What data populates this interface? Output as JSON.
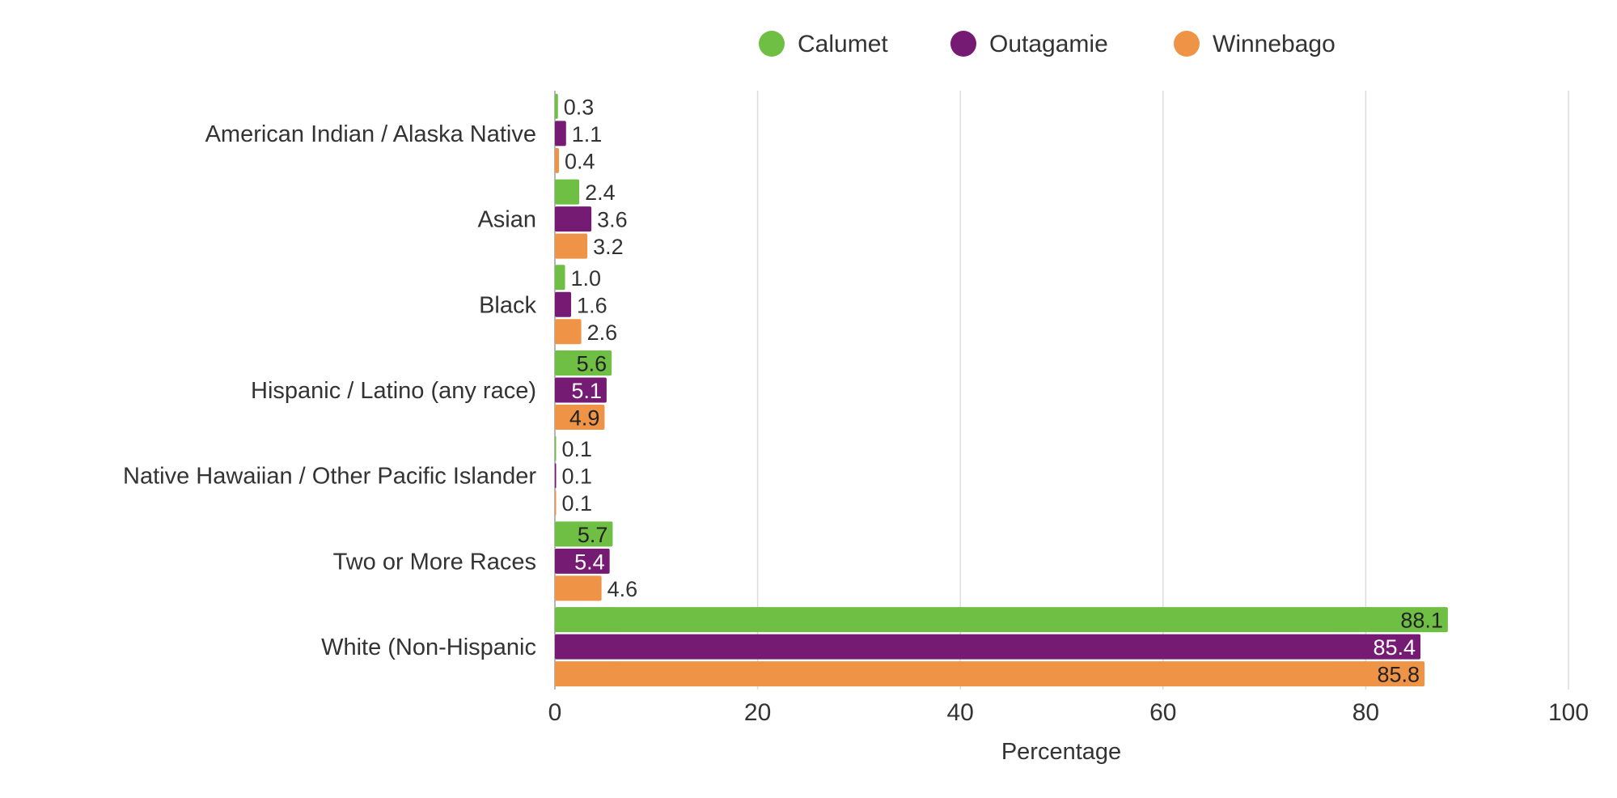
{
  "chart_data": {
    "type": "bar",
    "orientation": "horizontal",
    "title": "",
    "xlabel": "Percentage",
    "ylabel": "",
    "xlim": [
      0,
      100
    ],
    "xticks": [
      0,
      20,
      40,
      60,
      80,
      100
    ],
    "grid": true,
    "legend_position": "top-center",
    "categories": [
      "American Indian / Alaska Native",
      "Asian",
      "Black",
      "Hispanic / Latino (any race)",
      "Native Hawaiian / Other Pacific Islander",
      "Two or More Races",
      "White (Non-Hispanic"
    ],
    "series": [
      {
        "name": "Calumet",
        "color": "#6fbf44",
        "label_inside_color": "#222222",
        "values": [
          0.3,
          2.4,
          1.0,
          5.6,
          0.1,
          5.7,
          88.1
        ]
      },
      {
        "name": "Outagamie",
        "color": "#761b73",
        "label_inside_color": "#ffffff",
        "values": [
          1.1,
          3.6,
          1.6,
          5.1,
          0.1,
          5.4,
          85.4
        ]
      },
      {
        "name": "Winnebago",
        "color": "#ef9446",
        "label_inside_color": "#222222",
        "values": [
          0.4,
          3.2,
          2.6,
          4.9,
          0.1,
          4.6,
          85.8
        ]
      }
    ]
  }
}
